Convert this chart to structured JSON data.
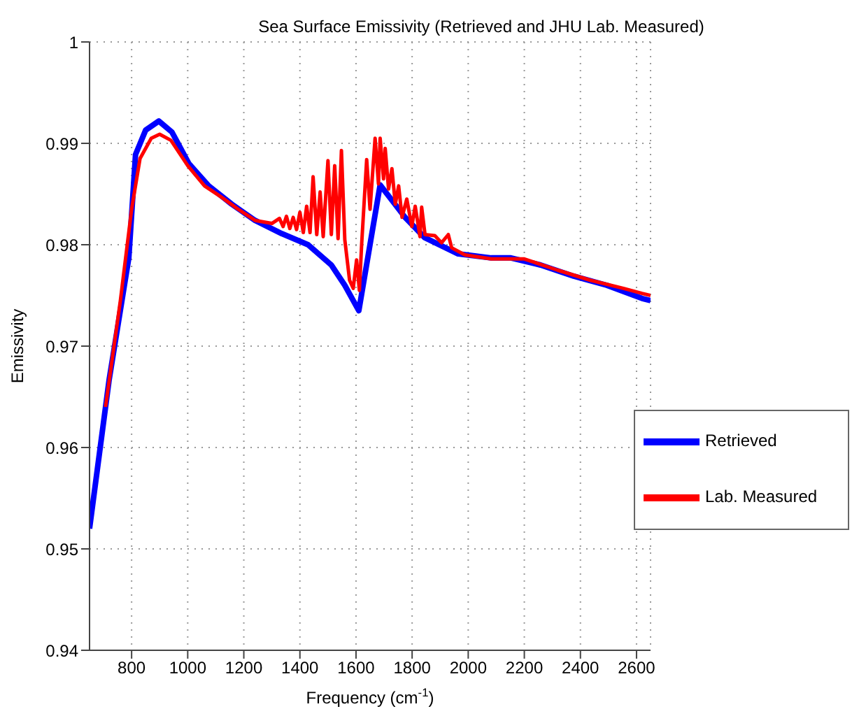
{
  "chart_data": {
    "type": "line",
    "title": "Sea Surface Emissivity (Retrieved and JHU Lab. Measured)",
    "xlabel": "Frequency (cm$^{-1}$)",
    "ylabel": "Emissivity",
    "xlim": [
      650,
      2650
    ],
    "xticks": [
      800,
      1000,
      1200,
      1400,
      1600,
      1800,
      2000,
      2200,
      2400,
      2600
    ],
    "ylim": [
      0.94,
      1
    ],
    "yticks": [
      0.94,
      0.95,
      0.96,
      0.97,
      0.98,
      0.99,
      1
    ],
    "grid": true,
    "legend": "right",
    "marker": "none",
    "line_style": "solid",
    "series": [
      {
        "name": "Retrieved",
        "color": "#0000ff",
        "x": [
          650,
          720,
          790,
          814,
          850,
          897,
          944,
          1004,
          1075,
          1157,
          1240,
          1335,
          1429,
          1512,
          1560,
          1610,
          1686,
          1775,
          1845,
          1964,
          2082,
          2152,
          2258,
          2376,
          2494,
          2620,
          2650
        ],
        "values": [
          0.952,
          0.9667,
          0.9787,
          0.9889,
          0.9913,
          0.9922,
          0.9911,
          0.988,
          0.9858,
          0.984,
          0.9824,
          0.9811,
          0.98,
          0.978,
          0.976,
          0.9735,
          0.9859,
          0.9827,
          0.9807,
          0.9791,
          0.9787,
          0.9787,
          0.978,
          0.9769,
          0.976,
          0.9747,
          0.9745
        ]
      },
      {
        "name": "Lab. Measured",
        "color": "#ff0000",
        "x": [
          707,
          760,
          800,
          830,
          870,
          900,
          940,
          1000,
          1060,
          1120,
          1180,
          1240,
          1300,
          1327,
          1340,
          1352,
          1364,
          1376,
          1388,
          1400,
          1412,
          1424,
          1436,
          1447,
          1460,
          1472,
          1483,
          1492,
          1500,
          1512,
          1524,
          1536,
          1548,
          1560,
          1577,
          1590,
          1602,
          1612,
          1620,
          1638,
          1650,
          1668,
          1680,
          1686,
          1698,
          1704,
          1716,
          1728,
          1740,
          1752,
          1764,
          1781,
          1799,
          1811,
          1828,
          1834,
          1846,
          1881,
          1905,
          1929,
          1941,
          1988,
          2082,
          2200,
          2318,
          2435,
          2553,
          2620,
          2650
        ],
        "values": [
          0.964,
          0.9745,
          0.9835,
          0.9885,
          0.9905,
          0.9909,
          0.9903,
          0.9878,
          0.9858,
          0.9847,
          0.9835,
          0.9824,
          0.9821,
          0.9826,
          0.9818,
          0.9828,
          0.9816,
          0.9827,
          0.9815,
          0.9832,
          0.9812,
          0.9838,
          0.9812,
          0.9867,
          0.981,
          0.9852,
          0.9808,
          0.9848,
          0.9883,
          0.981,
          0.9878,
          0.9806,
          0.9893,
          0.9805,
          0.9765,
          0.9757,
          0.9785,
          0.9755,
          0.98,
          0.9884,
          0.9835,
          0.9905,
          0.986,
          0.9905,
          0.9865,
          0.9895,
          0.9855,
          0.9875,
          0.984,
          0.9858,
          0.9827,
          0.9845,
          0.9818,
          0.9838,
          0.9808,
          0.9837,
          0.981,
          0.9809,
          0.9802,
          0.981,
          0.9797,
          0.979,
          0.9786,
          0.9786,
          0.9775,
          0.9765,
          0.9757,
          0.9752,
          0.975
        ]
      }
    ]
  }
}
